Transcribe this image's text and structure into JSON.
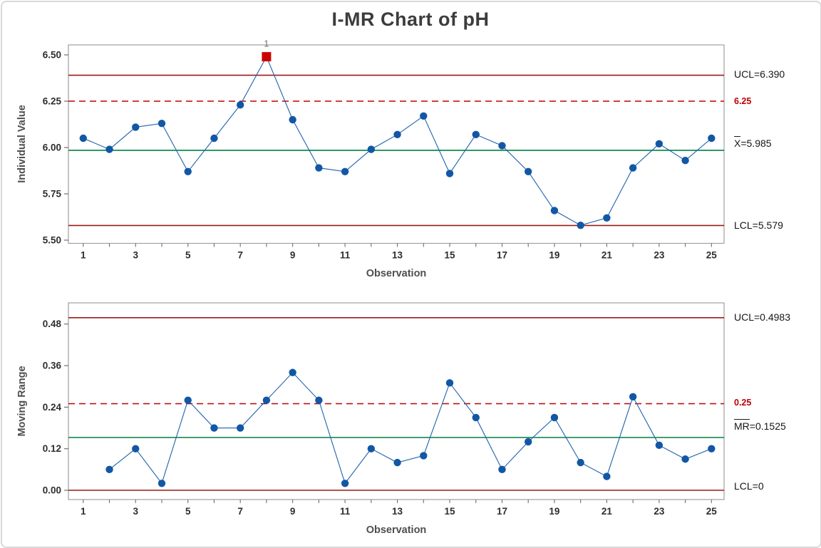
{
  "window": {
    "title": "I-MR Chart of pH"
  },
  "colors": {
    "series_blue": "#1257a5",
    "series_line_blue": "#1e62ac",
    "center_green": "#008040",
    "limit_dark_red": "#9b1a1a",
    "spec_red_dashed": "#c00000",
    "flag_red": "#cc0000",
    "axis_gray": "#a0a0a0",
    "tick_text": "#2e2e2e",
    "flag_text_gray": "#6f6f6f"
  },
  "chart_data": [
    {
      "type": "line",
      "subtype": "individuals-control-chart",
      "title": "I-MR Chart of pH",
      "xlabel": "Observation",
      "ylabel": "Individual Value",
      "xlim": [
        1,
        25
      ],
      "ylim": [
        5.48,
        6.55
      ],
      "x": [
        1,
        2,
        3,
        4,
        5,
        6,
        7,
        8,
        9,
        10,
        11,
        12,
        13,
        14,
        15,
        16,
        17,
        18,
        19,
        20,
        21,
        22,
        23,
        24,
        25
      ],
      "values": [
        6.05,
        5.99,
        6.11,
        6.13,
        5.87,
        6.05,
        6.23,
        6.49,
        6.15,
        5.89,
        5.87,
        5.99,
        6.07,
        6.17,
        5.86,
        6.07,
        6.01,
        5.87,
        5.66,
        5.58,
        5.62,
        5.89,
        6.02,
        5.93,
        6.05
      ],
      "center_line": 5.985,
      "ucl": 6.39,
      "lcl": 5.579,
      "spec_line": 6.25,
      "yticks": [
        "6.50",
        "6.25",
        "6.00",
        "5.75",
        "5.50"
      ],
      "xticks": [
        "1",
        "3",
        "5",
        "7",
        "9",
        "11",
        "13",
        "15",
        "17",
        "19",
        "21",
        "23",
        "25"
      ],
      "grid": "off",
      "legend": "none",
      "flagged_points": [
        {
          "x": 8,
          "label": "1"
        }
      ],
      "labels": {
        "ucl": "UCL=6.390",
        "spec": "6.25",
        "center_prefix": "X",
        "center_rest": "=5.985",
        "lcl": "LCL=5.579"
      }
    },
    {
      "type": "line",
      "subtype": "moving-range-control-chart",
      "title": "",
      "xlabel": "Observation",
      "ylabel": "Moving Range",
      "xlim": [
        1,
        25
      ],
      "ylim": [
        -0.03,
        0.54
      ],
      "x": [
        2,
        3,
        4,
        5,
        6,
        7,
        8,
        9,
        10,
        11,
        12,
        13,
        14,
        15,
        16,
        17,
        18,
        19,
        20,
        21,
        22,
        23,
        24,
        25
      ],
      "values": [
        0.06,
        0.12,
        0.02,
        0.26,
        0.18,
        0.18,
        0.26,
        0.34,
        0.26,
        0.02,
        0.12,
        0.08,
        0.1,
        0.31,
        0.21,
        0.06,
        0.14,
        0.21,
        0.08,
        0.04,
        0.27,
        0.13,
        0.09,
        0.12
      ],
      "center_line": 0.1525,
      "ucl": 0.4983,
      "lcl": 0,
      "spec_line": 0.25,
      "yticks": [
        "0.48",
        "0.36",
        "0.24",
        "0.12",
        "0.00"
      ],
      "xticks": [
        "1",
        "3",
        "5",
        "7",
        "9",
        "11",
        "13",
        "15",
        "17",
        "19",
        "21",
        "23",
        "25"
      ],
      "grid": "off",
      "legend": "none",
      "flagged_points": [],
      "labels": {
        "ucl": "UCL=0.4983",
        "spec": "0.25",
        "center_prefix": "MR",
        "center_rest": "=0.1525",
        "lcl": "LCL=0"
      }
    }
  ]
}
